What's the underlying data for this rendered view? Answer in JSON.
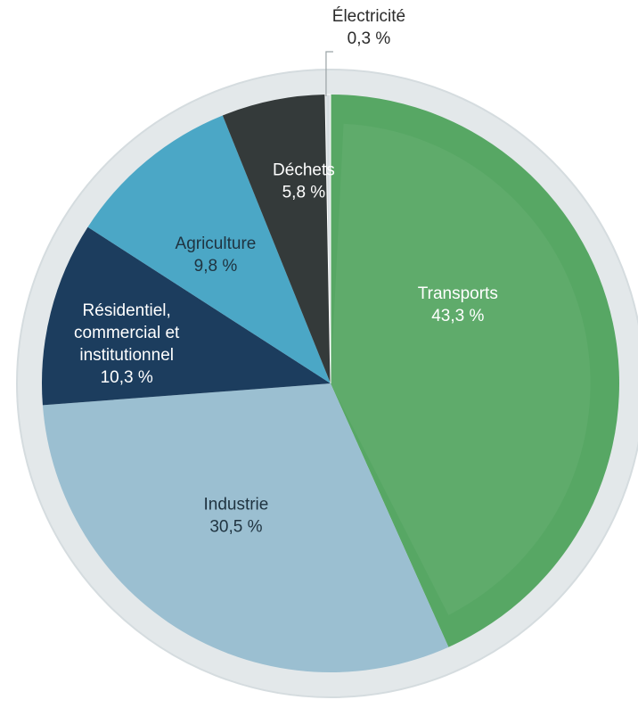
{
  "chart_data": {
    "type": "pie",
    "title": "",
    "start": "top",
    "direction": "clockwise",
    "unit": "%",
    "slices": [
      {
        "label": "Transports",
        "lines": [
          "Transports"
        ],
        "value": 43.3,
        "value_text": "43,3 %",
        "color": "#57a764",
        "text_color": "#ffffff"
      },
      {
        "label": "Industrie",
        "lines": [
          "Industrie"
        ],
        "value": 30.5,
        "value_text": "30,5 %",
        "color": "#9bbfd1",
        "text_color": "#1f3340"
      },
      {
        "label": "Résidentiel, commercial et institutionnel",
        "lines": [
          "Résidentiel,",
          "commercial et",
          "institutionnel"
        ],
        "value": 10.3,
        "value_text": "10,3 %",
        "color": "#1c3d5e",
        "text_color": "#ffffff"
      },
      {
        "label": "Agriculture",
        "lines": [
          "Agriculture"
        ],
        "value": 9.8,
        "value_text": "9,8 %",
        "color": "#4ba7c6",
        "text_color": "#1f3340"
      },
      {
        "label": "Déchets",
        "lines": [
          "Déchets"
        ],
        "value": 5.8,
        "value_text": "5,8 %",
        "color": "#343a3a",
        "text_color": "#ffffff"
      },
      {
        "label": "Électricité",
        "lines": [
          "Électricité"
        ],
        "value": 0.3,
        "value_text": "0,3 %",
        "color": "#d8dfe2",
        "text_color": "#2b2b2b",
        "callout": true
      }
    ],
    "colors": {
      "outer_ring": "#e3e8ea",
      "outer_ring_edge": "#d5dcdf"
    }
  }
}
